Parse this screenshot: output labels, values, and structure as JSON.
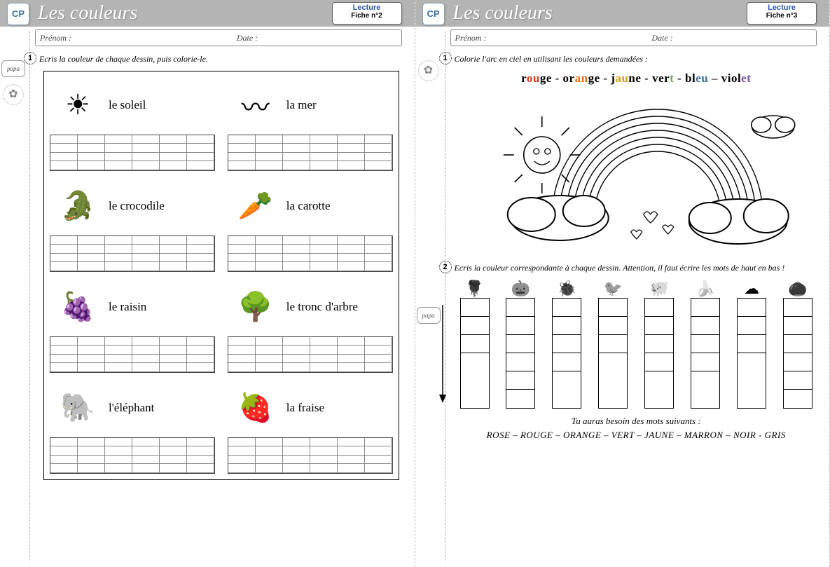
{
  "shared": {
    "cp": "CP",
    "title": "Les couleurs",
    "tag_top": "Lecture",
    "prenom": "Prénom :",
    "date": "Date :",
    "papa": "papa"
  },
  "left": {
    "fiche": "Fiche n°2",
    "instr1": "Ecris la couleur de chaque dessin, puis colorie-le.",
    "items": [
      {
        "label": "le soleil",
        "glyph": "☀"
      },
      {
        "label": "la mer",
        "glyph": "〰"
      },
      {
        "label": "le crocodile",
        "glyph": "🐊"
      },
      {
        "label": "la carotte",
        "glyph": "🥕"
      },
      {
        "label": "le raisin",
        "glyph": "🍇"
      },
      {
        "label": "le tronc d'arbre",
        "glyph": "🌳"
      },
      {
        "label": "l'éléphant",
        "glyph": "🐘"
      },
      {
        "label": "la fraise",
        "glyph": "🍓"
      }
    ]
  },
  "right": {
    "fiche": "Fiche n°3",
    "instr1": "Colorie l'arc en ciel en utilisant les couleurs demandées :",
    "colors_line": [
      {
        "pre": "r",
        "hi": "ou",
        "post": "ge",
        "hi_color": "#d33b1f"
      },
      {
        "pre": "or",
        "hi": "an",
        "post": "ge",
        "hi_color": "#e0701b"
      },
      {
        "pre": "j",
        "hi": "au",
        "post": "ne",
        "hi_color": "#d8a018"
      },
      {
        "pre": "ver",
        "hi": "t",
        "post": "",
        "hi_color": "#6fa756"
      },
      {
        "pre": "bl",
        "hi": "eu",
        "post": "",
        "hi_color": "#3a6e9e"
      },
      {
        "pre": "viol",
        "hi": "et",
        "post": "",
        "hi_color": "#7a4da0"
      }
    ],
    "instr2": "Ecris la couleur correspondante à chaque dessin. Attention, il faut écrire les mots de haut en bas !",
    "ex2_icons": [
      "🌹",
      "🎃",
      "🐞",
      "🐦",
      "🐖",
      "🍌",
      "☁",
      "🌰"
    ],
    "ex2_heights": [
      4,
      6,
      5,
      4,
      5,
      5,
      4,
      6
    ],
    "footer_intro": "Tu auras besoin des mots suivants :",
    "footer_words": "ROSE – ROUGE – ORANGE – VERT – JAUNE – MARRON – NOIR - GRIS"
  }
}
